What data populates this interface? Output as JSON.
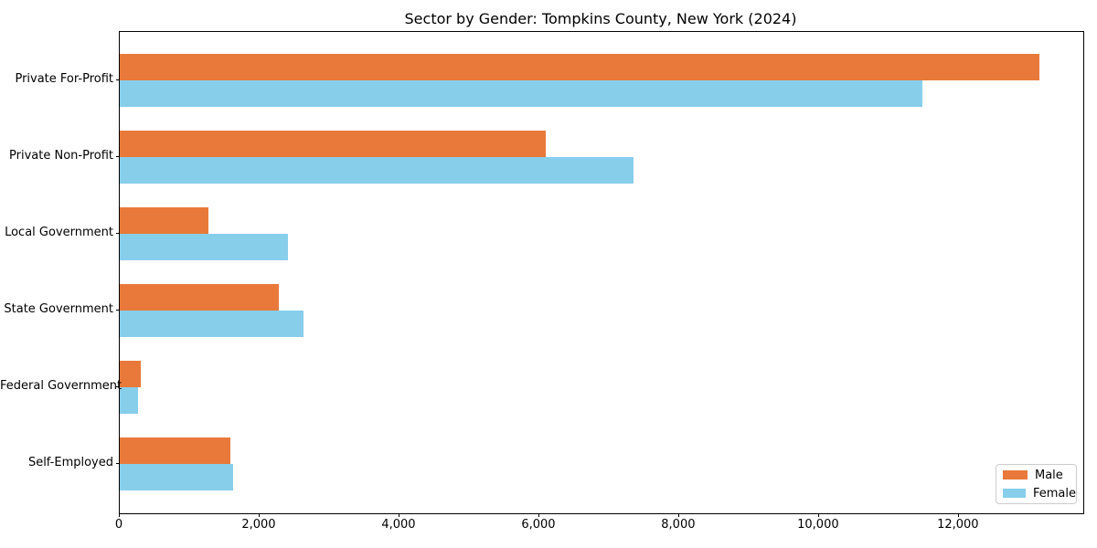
{
  "chart_data": {
    "type": "bar",
    "orientation": "horizontal",
    "title": "Sector by Gender: Tompkins County, New York (2024)",
    "categories": [
      "Private For-Profit",
      "Private Non-Profit",
      "Local Government",
      "State Government",
      "Federal Government",
      "Self-Employed"
    ],
    "series": [
      {
        "name": "Male",
        "color": "#E8793B",
        "values": [
          13150,
          6090,
          1265,
          2275,
          300,
          1580
        ]
      },
      {
        "name": "Female",
        "color": "#87CEEB",
        "values": [
          11480,
          7350,
          2405,
          2630,
          260,
          1620
        ]
      }
    ],
    "xlim": [
      0,
      13780
    ],
    "xticks": [
      0,
      2000,
      4000,
      6000,
      8000,
      10000,
      12000
    ],
    "xtick_labels": [
      "0",
      "2,000",
      "4,000",
      "6,000",
      "8,000",
      "10,000",
      "12,000"
    ],
    "ylabel": "",
    "xlabel": "",
    "grid": false,
    "legend_position": "lower right",
    "background_color": "#ffffff",
    "spine_color": "#000000"
  }
}
